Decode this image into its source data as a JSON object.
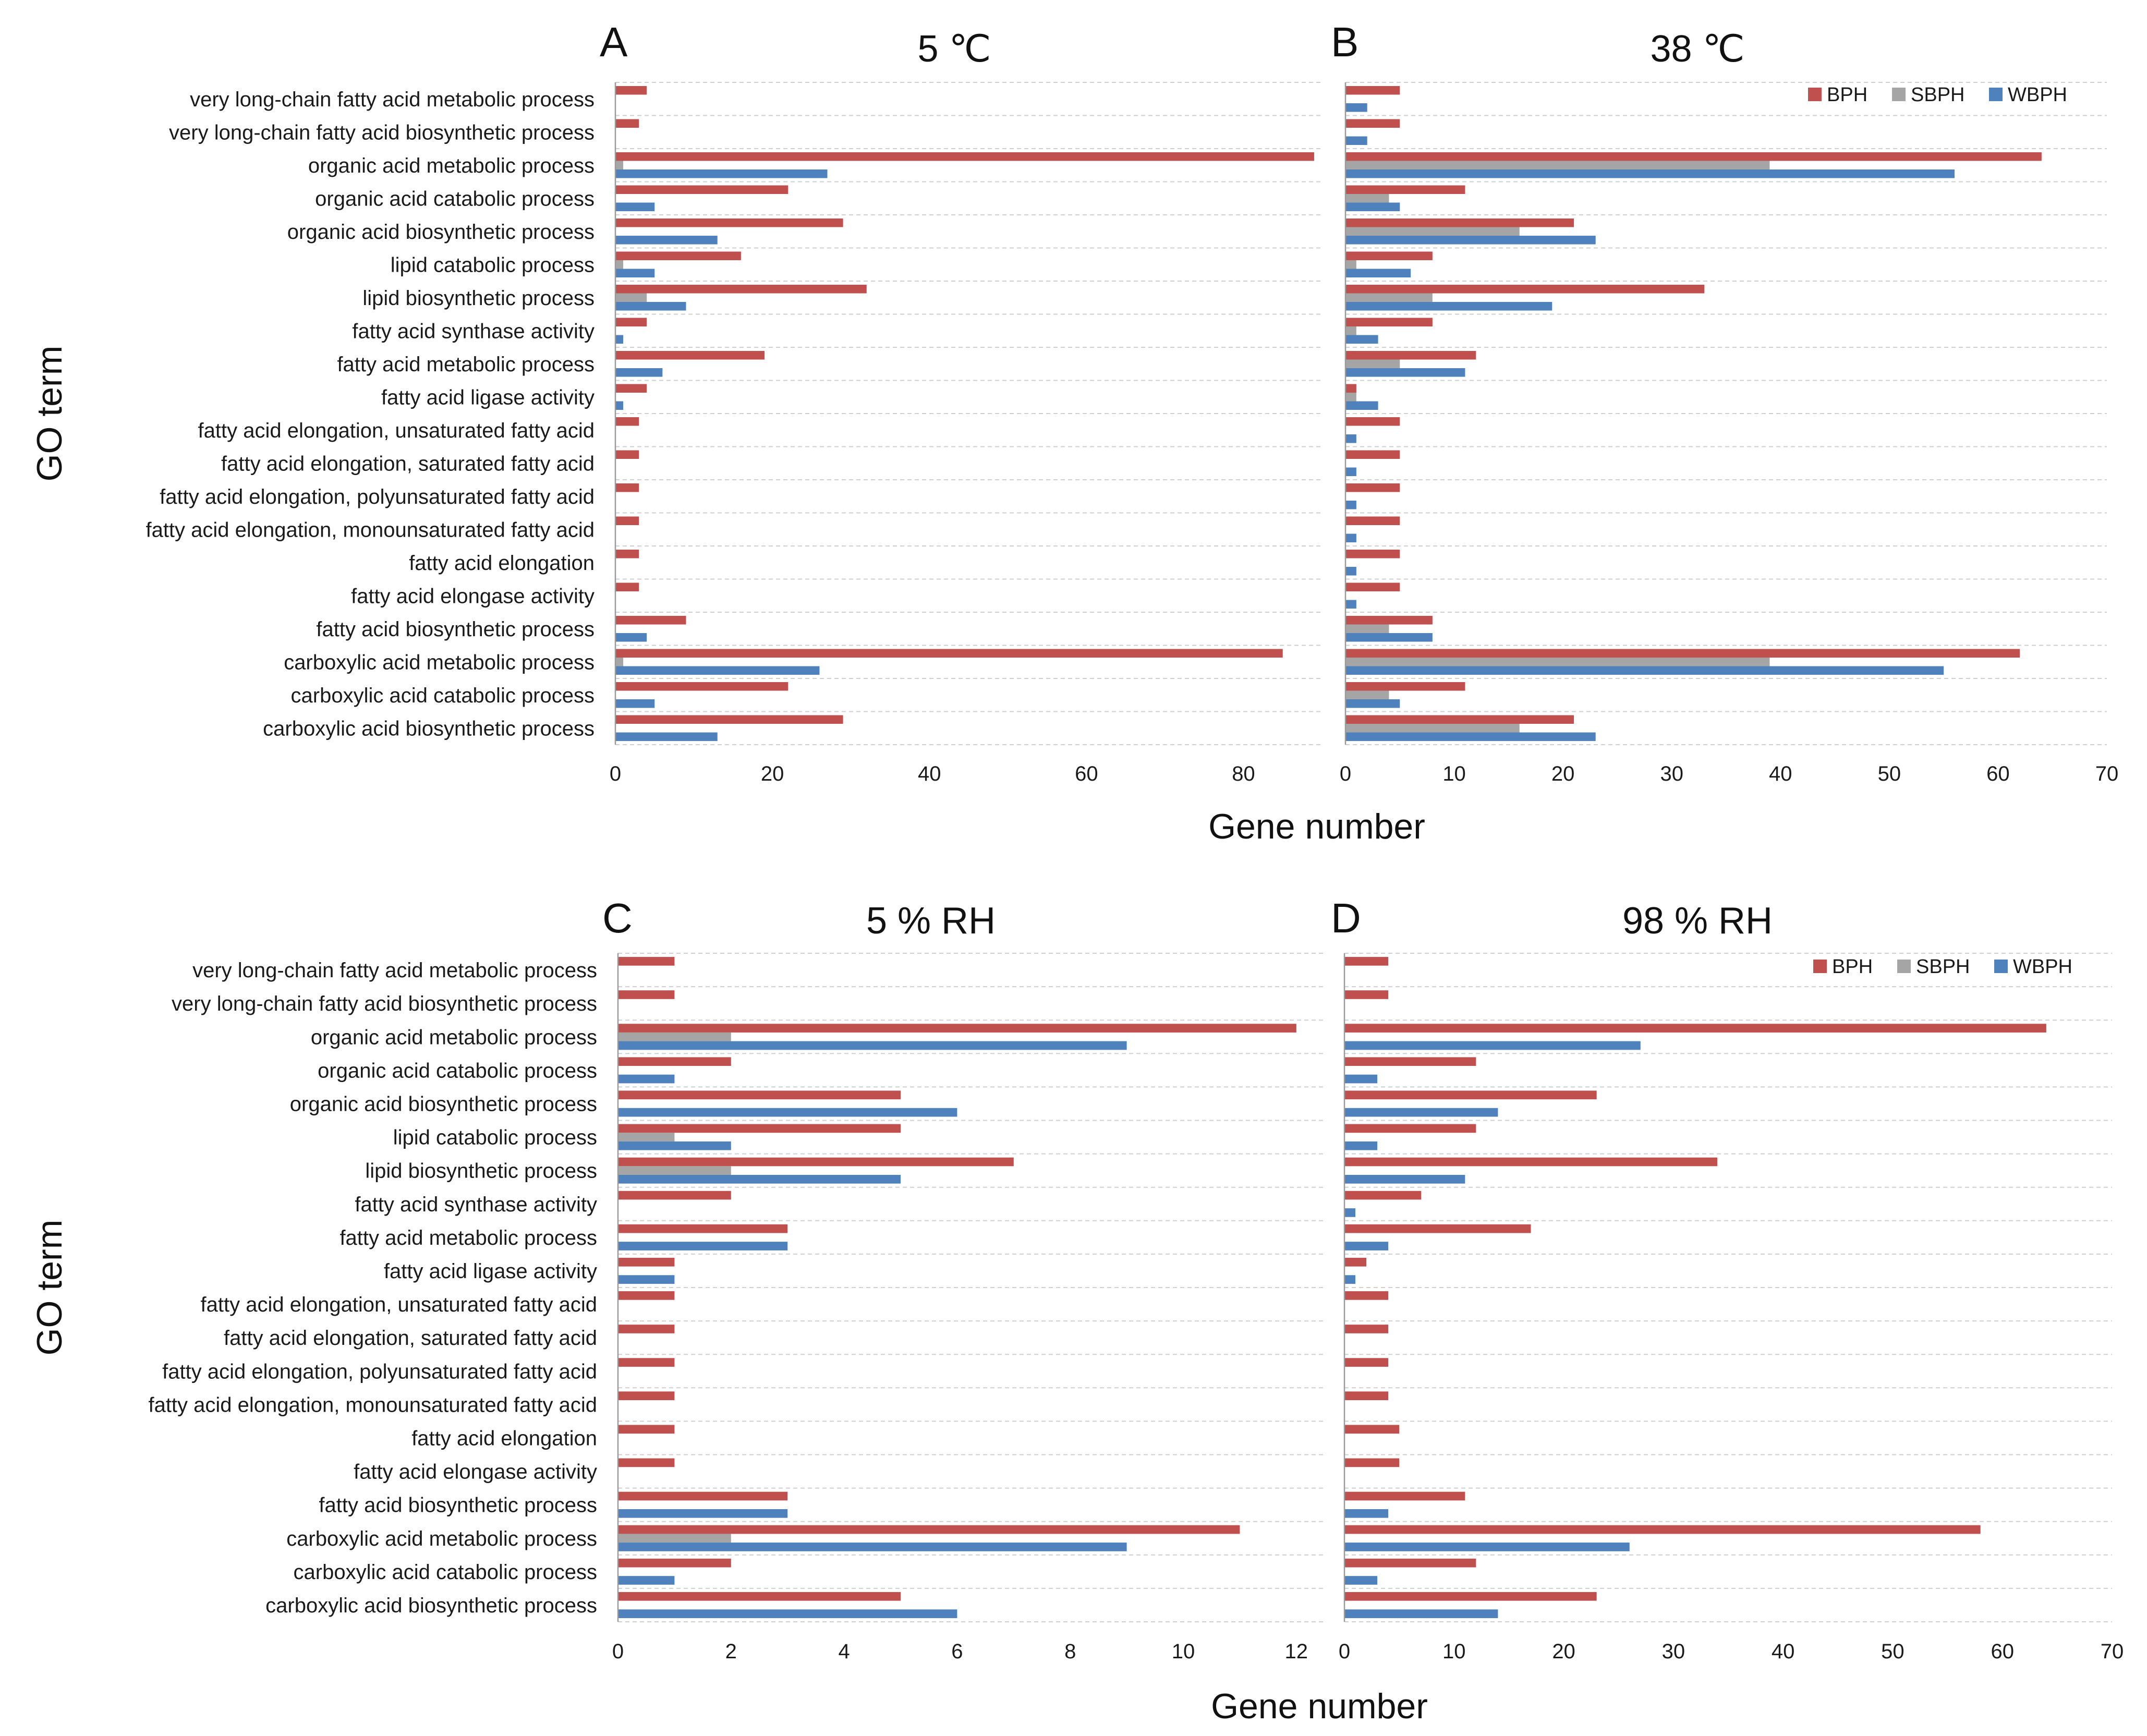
{
  "chart_data": [
    {
      "type": "bar",
      "orientation": "horizontal",
      "panel": "A",
      "title": "5 ℃",
      "ylabel": "GO term",
      "xlabel": "Gene number",
      "xlim": [
        0,
        90
      ],
      "xticks": [
        0,
        20,
        40,
        60,
        80
      ],
      "legend": false,
      "categories": [
        "very long-chain fatty acid metabolic process",
        "very long-chain fatty acid biosynthetic process",
        "organic acid metabolic process",
        "organic acid catabolic process",
        "organic acid biosynthetic process",
        "lipid catabolic process",
        "lipid biosynthetic process",
        "fatty acid synthase activity",
        "fatty acid metabolic process",
        "fatty acid ligase activity",
        "fatty acid elongation, unsaturated fatty acid",
        "fatty acid elongation, saturated fatty acid",
        "fatty acid elongation, polyunsaturated fatty acid",
        "fatty acid elongation, monounsaturated fatty acid",
        "fatty acid elongation",
        "fatty acid elongase activity",
        "fatty acid biosynthetic process",
        "carboxylic acid metabolic process",
        "carboxylic acid catabolic process",
        "carboxylic acid biosynthetic process"
      ],
      "series": [
        {
          "name": "BPH",
          "color": "#c0504d",
          "values": [
            4,
            3,
            89,
            22,
            29,
            16,
            32,
            4,
            19,
            4,
            3,
            3,
            3,
            3,
            3,
            3,
            9,
            85,
            22,
            29
          ]
        },
        {
          "name": "SBPH",
          "color": "#a5a5a5",
          "values": [
            0,
            0,
            1,
            0,
            0,
            1,
            4,
            0,
            0,
            0,
            0,
            0,
            0,
            0,
            0,
            0,
            0,
            1,
            0,
            0
          ]
        },
        {
          "name": "WBPH",
          "color": "#4f81bd",
          "values": [
            0,
            0,
            27,
            5,
            13,
            5,
            9,
            1,
            6,
            1,
            0,
            0,
            0,
            0,
            0,
            0,
            4,
            26,
            5,
            13
          ]
        }
      ]
    },
    {
      "type": "bar",
      "orientation": "horizontal",
      "panel": "B",
      "title": "38 ℃",
      "ylabel": "",
      "xlabel": "Gene number",
      "xlim": [
        0,
        70
      ],
      "xticks": [
        0,
        10,
        20,
        30,
        40,
        50,
        60,
        70
      ],
      "legend": true,
      "legend_position": "top-right",
      "categories": [
        "very long-chain fatty acid metabolic process",
        "very long-chain fatty acid biosynthetic process",
        "organic acid metabolic process",
        "organic acid catabolic process",
        "organic acid biosynthetic process",
        "lipid catabolic process",
        "lipid biosynthetic process",
        "fatty acid synthase activity",
        "fatty acid metabolic process",
        "fatty acid ligase activity",
        "fatty acid elongation, unsaturated fatty acid",
        "fatty acid elongation, saturated fatty acid",
        "fatty acid elongation, polyunsaturated fatty acid",
        "fatty acid elongation, monounsaturated fatty acid",
        "fatty acid elongation",
        "fatty acid elongase activity",
        "fatty acid biosynthetic process",
        "carboxylic acid metabolic process",
        "carboxylic acid catabolic process",
        "carboxylic acid biosynthetic process"
      ],
      "series": [
        {
          "name": "BPH",
          "color": "#c0504d",
          "values": [
            5,
            5,
            64,
            11,
            21,
            8,
            33,
            8,
            12,
            1,
            5,
            5,
            5,
            5,
            5,
            5,
            8,
            62,
            11,
            21
          ]
        },
        {
          "name": "SBPH",
          "color": "#a5a5a5",
          "values": [
            0,
            0,
            39,
            4,
            16,
            1,
            8,
            1,
            5,
            1,
            0,
            0,
            0,
            0,
            0,
            0,
            4,
            39,
            4,
            16
          ]
        },
        {
          "name": "WBPH",
          "color": "#4f81bd",
          "values": [
            2,
            2,
            56,
            5,
            23,
            6,
            19,
            3,
            11,
            3,
            1,
            1,
            1,
            1,
            1,
            1,
            8,
            55,
            5,
            23
          ]
        }
      ]
    },
    {
      "type": "bar",
      "orientation": "horizontal",
      "panel": "C",
      "title": "5 % RH",
      "ylabel": "GO term",
      "xlabel": "Gene number",
      "xlim": [
        0,
        12.5
      ],
      "xticks": [
        0,
        2,
        4,
        6,
        8,
        10,
        12
      ],
      "legend": false,
      "categories": [
        "very long-chain fatty acid metabolic process",
        "very long-chain fatty acid biosynthetic process",
        "organic acid metabolic process",
        "organic acid catabolic process",
        "organic acid biosynthetic process",
        "lipid catabolic process",
        "lipid biosynthetic process",
        "fatty acid synthase activity",
        "fatty acid metabolic process",
        "fatty acid ligase activity",
        "fatty acid elongation, unsaturated fatty acid",
        "fatty acid elongation, saturated fatty acid",
        "fatty acid elongation, polyunsaturated fatty acid",
        "fatty acid elongation, monounsaturated fatty acid",
        "fatty acid elongation",
        "fatty acid elongase activity",
        "fatty acid biosynthetic process",
        "carboxylic acid metabolic process",
        "carboxylic acid catabolic process",
        "carboxylic acid biosynthetic process"
      ],
      "series": [
        {
          "name": "BPH",
          "color": "#c0504d",
          "values": [
            1,
            1,
            12,
            2,
            5,
            5,
            7,
            2,
            3,
            1,
            1,
            1,
            1,
            1,
            1,
            1,
            3,
            11,
            2,
            5
          ]
        },
        {
          "name": "SBPH",
          "color": "#a5a5a5",
          "values": [
            0,
            0,
            2,
            0,
            0,
            1,
            2,
            0,
            0,
            0,
            0,
            0,
            0,
            0,
            0,
            0,
            0,
            2,
            0,
            0
          ]
        },
        {
          "name": "WBPH",
          "color": "#4f81bd",
          "values": [
            0,
            0,
            9,
            1,
            6,
            2,
            5,
            0,
            3,
            1,
            0,
            0,
            0,
            0,
            0,
            0,
            3,
            9,
            1,
            6
          ]
        }
      ]
    },
    {
      "type": "bar",
      "orientation": "horizontal",
      "panel": "D",
      "title": "98 % RH",
      "ylabel": "",
      "xlabel": "Gene number",
      "xlim": [
        0,
        70
      ],
      "xticks": [
        0,
        10,
        20,
        30,
        40,
        50,
        60,
        70
      ],
      "legend": true,
      "legend_position": "top-right",
      "categories": [
        "very long-chain fatty acid metabolic process",
        "very long-chain fatty acid biosynthetic process",
        "organic acid metabolic process",
        "organic acid catabolic process",
        "organic acid biosynthetic process",
        "lipid catabolic process",
        "lipid biosynthetic process",
        "fatty acid synthase activity",
        "fatty acid metabolic process",
        "fatty acid ligase activity",
        "fatty acid elongation, unsaturated fatty acid",
        "fatty acid elongation, saturated fatty acid",
        "fatty acid elongation, polyunsaturated fatty acid",
        "fatty acid elongation, monounsaturated fatty acid",
        "fatty acid elongation",
        "fatty acid elongase activity",
        "fatty acid biosynthetic process",
        "carboxylic acid metabolic process",
        "carboxylic acid catabolic process",
        "carboxylic acid biosynthetic process"
      ],
      "series": [
        {
          "name": "BPH",
          "color": "#c0504d",
          "values": [
            4,
            4,
            64,
            12,
            23,
            12,
            34,
            7,
            17,
            2,
            4,
            4,
            4,
            4,
            5,
            5,
            11,
            58,
            12,
            23
          ]
        },
        {
          "name": "SBPH",
          "color": "#a5a5a5",
          "values": [
            0,
            0,
            0,
            0,
            0,
            0,
            0,
            0,
            0,
            0,
            0,
            0,
            0,
            0,
            0,
            0,
            0,
            0,
            0,
            0
          ]
        },
        {
          "name": "WBPH",
          "color": "#4f81bd",
          "values": [
            0,
            0,
            27,
            3,
            14,
            3,
            11,
            1,
            4,
            1,
            0,
            0,
            0,
            0,
            0,
            0,
            4,
            26,
            3,
            14
          ]
        }
      ]
    }
  ]
}
